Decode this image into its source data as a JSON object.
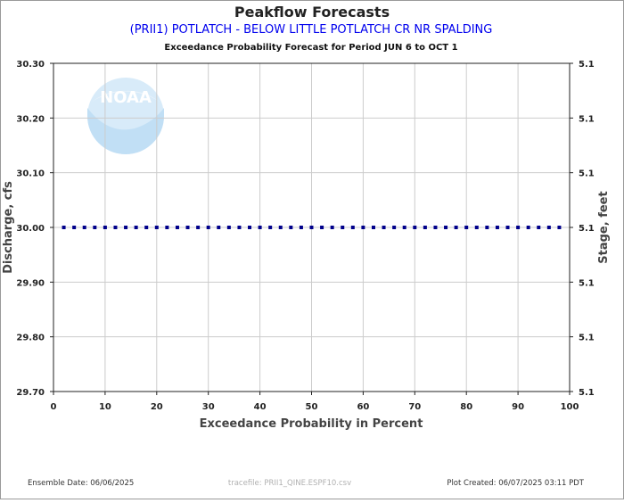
{
  "chart_data": {
    "type": "scatter",
    "title": "Peakflow Forecasts",
    "subtitle": "(PRII1) POTLATCH - BELOW LITTLE POTLATCH CR NR SPALDING",
    "period_label": "Exceedance Probability Forecast for Period JUN 6 to OCT 1",
    "xlabel": "Exceedance Probability in Percent",
    "ylabel": "Discharge, cfs",
    "ylabel_right": "Stage, feet",
    "xlim": [
      0,
      100
    ],
    "ylim": [
      29.7,
      30.3
    ],
    "grid": true,
    "x_ticks": [
      "0",
      "10",
      "20",
      "30",
      "40",
      "50",
      "60",
      "70",
      "80",
      "90",
      "100"
    ],
    "y_ticks": [
      "29.70",
      "29.80",
      "29.90",
      "30.00",
      "30.10",
      "30.20",
      "30.30"
    ],
    "y_ticks_right": [
      "5.1",
      "5.1",
      "5.1",
      "5.1",
      "5.1",
      "5.1",
      "5.1"
    ],
    "series": [
      {
        "color": "#00008b",
        "x": [
          2,
          4,
          6,
          8,
          10,
          12,
          14,
          16,
          18,
          20,
          22,
          24,
          26,
          28,
          30,
          32,
          34,
          36,
          38,
          40,
          42,
          44,
          46,
          48,
          50,
          52,
          54,
          56,
          58,
          60,
          62,
          64,
          66,
          68,
          70,
          72,
          74,
          76,
          78,
          80,
          82,
          84,
          86,
          88,
          90,
          92,
          94,
          96,
          98
        ],
        "y": [
          30.0,
          30.0,
          30.0,
          30.0,
          30.0,
          30.0,
          30.0,
          30.0,
          30.0,
          30.0,
          30.0,
          30.0,
          30.0,
          30.0,
          30.0,
          30.0,
          30.0,
          30.0,
          30.0,
          30.0,
          30.0,
          30.0,
          30.0,
          30.0,
          30.0,
          30.0,
          30.0,
          30.0,
          30.0,
          30.0,
          30.0,
          30.0,
          30.0,
          30.0,
          30.0,
          30.0,
          30.0,
          30.0,
          30.0,
          30.0,
          30.0,
          30.0,
          30.0,
          30.0,
          30.0,
          30.0,
          30.0,
          30.0,
          30.0
        ]
      }
    ]
  },
  "logo_text": "NOAA",
  "footer": {
    "ensemble_date": "Ensemble Date: 06/06/2025",
    "tracefile": "tracefile: PRII1_QINE.ESPF10.csv",
    "plot_created": "Plot Created: 06/07/2025 03:11 PDT"
  }
}
